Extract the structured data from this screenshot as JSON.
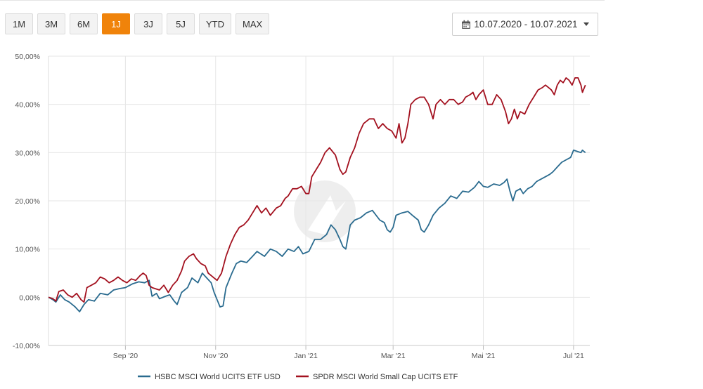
{
  "range_buttons": [
    {
      "label": "1M",
      "active": false
    },
    {
      "label": "3M",
      "active": false
    },
    {
      "label": "6M",
      "active": false
    },
    {
      "label": "1J",
      "active": true
    },
    {
      "label": "3J",
      "active": false
    },
    {
      "label": "5J",
      "active": false
    },
    {
      "label": "YTD",
      "active": false
    },
    {
      "label": "MAX",
      "active": false
    }
  ],
  "date_range": {
    "label": "10.07.2020 - 10.07.2021",
    "icon": "calendar-icon"
  },
  "colors": {
    "accent": "#f0830a",
    "hsbc": "#2a6b8f",
    "spdr": "#a3111f",
    "grid": "#e6e6e6"
  },
  "chart_data": {
    "type": "line",
    "title": "",
    "xlabel": "",
    "ylabel": "",
    "ylim": [
      -10,
      50
    ],
    "yticks": [
      -10,
      0,
      10,
      20,
      30,
      40,
      50
    ],
    "ytick_labels": [
      "-10,00%",
      "0,00%",
      "10,00%",
      "20,00%",
      "30,00%",
      "40,00%",
      "50,00%"
    ],
    "xlim": [
      0,
      366
    ],
    "xticks": [
      {
        "day": 52,
        "label": "Sep '20"
      },
      {
        "day": 113,
        "label": "Nov '20"
      },
      {
        "day": 174,
        "label": "Jan '21"
      },
      {
        "day": 233,
        "label": "Mar '21"
      },
      {
        "day": 294,
        "label": "Mai '21"
      },
      {
        "day": 355,
        "label": "Jul '21"
      }
    ],
    "grid": true,
    "legend_position": "bottom-center",
    "series": [
      {
        "name": "HSBC MSCI World UCITS ETF USD",
        "color": "#2a6b8f",
        "points": [
          [
            0,
            0
          ],
          [
            3,
            -0.5
          ],
          [
            5,
            -1
          ],
          [
            8,
            0.5
          ],
          [
            11,
            -0.5
          ],
          [
            14,
            -1
          ],
          [
            18,
            -2
          ],
          [
            21,
            -3
          ],
          [
            24,
            -1.5
          ],
          [
            27,
            -0.5
          ],
          [
            31,
            -0.8
          ],
          [
            35,
            0.8
          ],
          [
            40,
            0.5
          ],
          [
            44,
            1.5
          ],
          [
            48,
            1.8
          ],
          [
            52,
            2
          ],
          [
            57,
            2.8
          ],
          [
            61,
            3.2
          ],
          [
            65,
            3
          ],
          [
            68,
            3.5
          ],
          [
            70,
            0.2
          ],
          [
            73,
            0.8
          ],
          [
            75,
            -0.3
          ],
          [
            79,
            0.2
          ],
          [
            82,
            0.5
          ],
          [
            85,
            -0.8
          ],
          [
            87,
            -1.5
          ],
          [
            90,
            1
          ],
          [
            94,
            2
          ],
          [
            97,
            4
          ],
          [
            101,
            3
          ],
          [
            104,
            5
          ],
          [
            107,
            4
          ],
          [
            110,
            3
          ],
          [
            112,
            1
          ],
          [
            114,
            -0.5
          ],
          [
            116,
            -2
          ],
          [
            118,
            -1.8
          ],
          [
            120,
            2
          ],
          [
            124,
            5
          ],
          [
            127,
            7
          ],
          [
            130,
            7.5
          ],
          [
            134,
            7.2
          ],
          [
            138,
            8.5
          ],
          [
            141,
            9.5
          ],
          [
            146,
            8.5
          ],
          [
            150,
            10
          ],
          [
            154,
            9.5
          ],
          [
            158,
            8.5
          ],
          [
            162,
            10
          ],
          [
            166,
            9.5
          ],
          [
            169,
            10.5
          ],
          [
            172,
            9
          ],
          [
            176,
            9.5
          ],
          [
            180,
            12
          ],
          [
            184,
            12
          ],
          [
            188,
            13
          ],
          [
            191,
            15
          ],
          [
            194,
            14
          ],
          [
            197,
            12
          ],
          [
            199,
            10.5
          ],
          [
            201,
            10
          ],
          [
            204,
            15
          ],
          [
            207,
            16
          ],
          [
            211,
            16.5
          ],
          [
            215,
            17.5
          ],
          [
            219,
            18
          ],
          [
            224,
            16
          ],
          [
            227,
            15.5
          ],
          [
            229,
            14
          ],
          [
            231,
            13.5
          ],
          [
            233,
            14.5
          ],
          [
            235,
            17
          ],
          [
            239,
            17.5
          ],
          [
            243,
            17.8
          ],
          [
            246,
            17
          ],
          [
            250,
            16
          ],
          [
            252,
            14
          ],
          [
            254,
            13.5
          ],
          [
            257,
            15
          ],
          [
            260,
            17
          ],
          [
            264,
            18.5
          ],
          [
            268,
            19.5
          ],
          [
            272,
            21
          ],
          [
            276,
            20.5
          ],
          [
            280,
            22
          ],
          [
            284,
            21.8
          ],
          [
            288,
            22.8
          ],
          [
            291,
            24
          ],
          [
            294,
            23
          ],
          [
            297,
            22.8
          ],
          [
            301,
            23.5
          ],
          [
            305,
            23.2
          ],
          [
            308,
            23.8
          ],
          [
            310,
            24.5
          ],
          [
            312,
            22
          ],
          [
            314,
            20
          ],
          [
            316,
            22
          ],
          [
            319,
            22.5
          ],
          [
            321,
            21.5
          ],
          [
            324,
            22.5
          ],
          [
            327,
            23
          ],
          [
            330,
            24
          ],
          [
            333,
            24.5
          ],
          [
            336,
            25
          ],
          [
            339,
            25.5
          ],
          [
            341,
            26
          ],
          [
            344,
            27
          ],
          [
            347,
            28
          ],
          [
            350,
            28.5
          ],
          [
            353,
            29
          ],
          [
            355,
            30.5
          ],
          [
            358,
            30.2
          ],
          [
            360,
            30
          ],
          [
            361,
            30.5
          ],
          [
            363,
            30
          ]
        ]
      },
      {
        "name": "SPDR MSCI World Small Cap UCITS ETF",
        "color": "#a3111f",
        "points": [
          [
            0,
            0
          ],
          [
            3,
            -0.3
          ],
          [
            5,
            -0.8
          ],
          [
            7,
            1.2
          ],
          [
            10,
            1.5
          ],
          [
            13,
            0.5
          ],
          [
            16,
            0
          ],
          [
            19,
            0.8
          ],
          [
            22,
            -0.5
          ],
          [
            24,
            -1
          ],
          [
            26,
            2
          ],
          [
            29,
            2.5
          ],
          [
            32,
            3
          ],
          [
            35,
            4.2
          ],
          [
            38,
            3.8
          ],
          [
            41,
            3
          ],
          [
            44,
            3.5
          ],
          [
            47,
            4.2
          ],
          [
            50,
            3.5
          ],
          [
            53,
            3
          ],
          [
            56,
            3.8
          ],
          [
            59,
            3.5
          ],
          [
            62,
            4.5
          ],
          [
            64,
            5
          ],
          [
            66,
            4.5
          ],
          [
            68,
            2.5
          ],
          [
            70,
            2
          ],
          [
            72,
            1.8
          ],
          [
            75,
            1.5
          ],
          [
            78,
            2.5
          ],
          [
            81,
            1
          ],
          [
            84,
            2.5
          ],
          [
            87,
            3.5
          ],
          [
            90,
            5.5
          ],
          [
            92,
            7.5
          ],
          [
            95,
            8.5
          ],
          [
            98,
            9
          ],
          [
            100,
            8
          ],
          [
            103,
            7
          ],
          [
            106,
            6.5
          ],
          [
            108,
            5
          ],
          [
            110,
            4.5
          ],
          [
            112,
            4
          ],
          [
            114,
            3.5
          ],
          [
            117,
            5
          ],
          [
            120,
            8.5
          ],
          [
            123,
            11
          ],
          [
            126,
            13
          ],
          [
            129,
            14.5
          ],
          [
            132,
            15
          ],
          [
            135,
            16
          ],
          [
            138,
            17.5
          ],
          [
            141,
            19
          ],
          [
            144,
            17.5
          ],
          [
            147,
            18.5
          ],
          [
            150,
            17
          ],
          [
            154,
            18.5
          ],
          [
            157,
            19
          ],
          [
            160,
            20.5
          ],
          [
            162,
            21
          ],
          [
            165,
            22.5
          ],
          [
            168,
            22.5
          ],
          [
            171,
            23
          ],
          [
            174,
            21.5
          ],
          [
            176,
            21.5
          ],
          [
            178,
            25
          ],
          [
            181,
            26.5
          ],
          [
            184,
            28
          ],
          [
            187,
            30
          ],
          [
            190,
            31
          ],
          [
            194,
            29.5
          ],
          [
            197,
            26.5
          ],
          [
            199,
            25.5
          ],
          [
            201,
            26
          ],
          [
            204,
            29
          ],
          [
            207,
            31
          ],
          [
            210,
            34
          ],
          [
            213,
            36
          ],
          [
            217,
            37
          ],
          [
            220,
            37
          ],
          [
            223,
            35
          ],
          [
            226,
            36
          ],
          [
            229,
            35
          ],
          [
            232,
            34.5
          ],
          [
            235,
            33
          ],
          [
            237,
            36
          ],
          [
            239,
            32
          ],
          [
            241,
            33
          ],
          [
            243,
            36
          ],
          [
            245,
            40
          ],
          [
            248,
            41
          ],
          [
            251,
            41.5
          ],
          [
            254,
            41.5
          ],
          [
            257,
            40
          ],
          [
            260,
            37
          ],
          [
            262,
            40
          ],
          [
            265,
            41
          ],
          [
            268,
            40
          ],
          [
            271,
            41
          ],
          [
            274,
            41
          ],
          [
            277,
            40
          ],
          [
            280,
            40.5
          ],
          [
            282,
            41.5
          ],
          [
            285,
            42
          ],
          [
            287,
            42.5
          ],
          [
            289,
            41
          ],
          [
            291,
            42
          ],
          [
            294,
            43
          ],
          [
            297,
            40
          ],
          [
            300,
            40
          ],
          [
            303,
            42
          ],
          [
            306,
            41
          ],
          [
            309,
            38.5
          ],
          [
            311,
            36
          ],
          [
            313,
            37
          ],
          [
            315,
            39
          ],
          [
            317,
            37
          ],
          [
            319,
            38.5
          ],
          [
            322,
            38
          ],
          [
            325,
            40
          ],
          [
            328,
            41.5
          ],
          [
            331,
            43
          ],
          [
            334,
            43.5
          ],
          [
            336,
            44
          ],
          [
            338,
            43.5
          ],
          [
            340,
            43
          ],
          [
            342,
            42
          ],
          [
            344,
            44
          ],
          [
            346,
            45
          ],
          [
            348,
            44.5
          ],
          [
            350,
            45.5
          ],
          [
            352,
            45
          ],
          [
            354,
            44
          ],
          [
            356,
            45.5
          ],
          [
            358,
            45.5
          ],
          [
            360,
            44
          ],
          [
            361,
            42.5
          ],
          [
            363,
            44
          ]
        ]
      }
    ]
  }
}
